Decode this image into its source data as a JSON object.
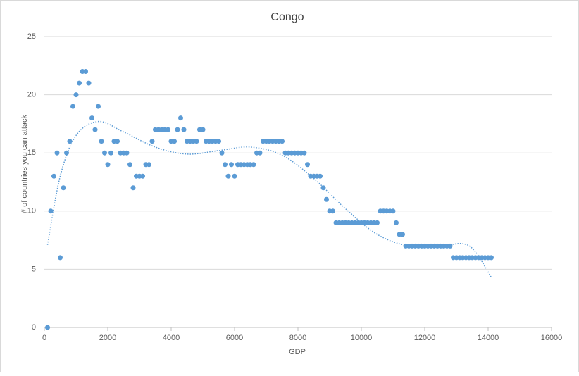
{
  "chart_data": {
    "type": "scatter",
    "title": "Congo",
    "x_label": "GDP",
    "y_label": "# of countries you can attack",
    "color": "#5b9bd5",
    "grid": true,
    "xlim": [
      0,
      16000
    ],
    "xticks": [
      0,
      2000,
      4000,
      6000,
      8000,
      10000,
      12000,
      14000,
      16000
    ],
    "ylim": [
      0,
      25
    ],
    "yticks": [
      0,
      5,
      10,
      15,
      20,
      25
    ],
    "series": [
      {
        "x": [
          100,
          200,
          300,
          400,
          500,
          600,
          700,
          800,
          900,
          1000,
          1100,
          1200,
          1300,
          1400,
          1500,
          1600,
          1700,
          1800,
          1900,
          2000,
          2100,
          2200,
          2300,
          2400,
          2500,
          2600,
          2700,
          2800,
          2900,
          3000,
          3100,
          3200,
          3300,
          3400,
          3500,
          3600,
          3700,
          3800,
          3900,
          4000,
          4100,
          4200,
          4300,
          4400,
          4500,
          4600,
          4700,
          4800,
          4900,
          5000,
          5100,
          5200,
          5300,
          5400,
          5500,
          5600,
          5700,
          5800,
          5900,
          6000,
          6100,
          6200,
          6300,
          6400,
          6500,
          6600,
          6700,
          6800,
          6900,
          7000,
          7100,
          7200,
          7300,
          7400,
          7500,
          7600,
          7700,
          7800,
          7900,
          8000,
          8100,
          8200,
          8300,
          8400,
          8500,
          8600,
          8700,
          8800,
          8900,
          9000,
          9100,
          9200,
          9300,
          9400,
          9500,
          9600,
          9700,
          9800,
          9900,
          10000,
          10100,
          10200,
          10300,
          10400,
          10500,
          10600,
          10700,
          10800,
          10900,
          11000,
          11100,
          11200,
          11300,
          11400,
          11500,
          11600,
          11700,
          11800,
          11900,
          12000,
          12100,
          12200,
          12300,
          12400,
          12500,
          12600,
          12700,
          12800,
          12900,
          13000,
          13100,
          13200,
          13300,
          13400,
          13500,
          13600,
          13700,
          13800,
          13900,
          14000,
          14100
        ],
        "values": [
          0,
          10,
          13,
          15,
          6,
          12,
          15,
          16,
          19,
          20,
          21,
          22,
          22,
          21,
          18,
          17,
          19,
          16,
          15,
          14,
          15,
          16,
          16,
          15,
          15,
          15,
          14,
          12,
          13,
          13,
          13,
          14,
          14,
          16,
          17,
          17,
          17,
          17,
          17,
          16,
          16,
          17,
          18,
          17,
          16,
          16,
          16,
          16,
          17,
          17,
          16,
          16,
          16,
          16,
          16,
          15,
          14,
          13,
          14,
          13,
          14,
          14,
          14,
          14,
          14,
          14,
          15,
          15,
          16,
          16,
          16,
          16,
          16,
          16,
          16,
          15,
          15,
          15,
          15,
          15,
          15,
          15,
          14,
          13,
          13,
          13,
          13,
          12,
          11,
          10,
          10,
          9,
          9,
          9,
          9,
          9,
          9,
          9,
          9,
          9,
          9,
          9,
          9,
          9,
          9,
          10,
          10,
          10,
          10,
          10,
          9,
          8,
          8,
          7,
          7,
          7,
          7,
          7,
          7,
          7,
          7,
          7,
          7,
          7,
          7,
          7,
          7,
          7,
          6,
          6,
          6,
          6,
          6,
          6,
          6,
          6,
          6,
          6,
          6,
          6,
          6
        ]
      }
    ],
    "trendline": {
      "x": [
        100,
        500,
        1000,
        1700,
        2500,
        3500,
        4500,
        5500,
        6500,
        7500,
        8500,
        9500,
        10500,
        11500,
        12500,
        13200,
        13600,
        14100
      ],
      "values": [
        7.1,
        13,
        16.5,
        17.7,
        16.8,
        15.5,
        14.9,
        15.2,
        15.5,
        14.8,
        12.8,
        10.2,
        8,
        7,
        7,
        7.2,
        6.5,
        4.3
      ]
    }
  }
}
